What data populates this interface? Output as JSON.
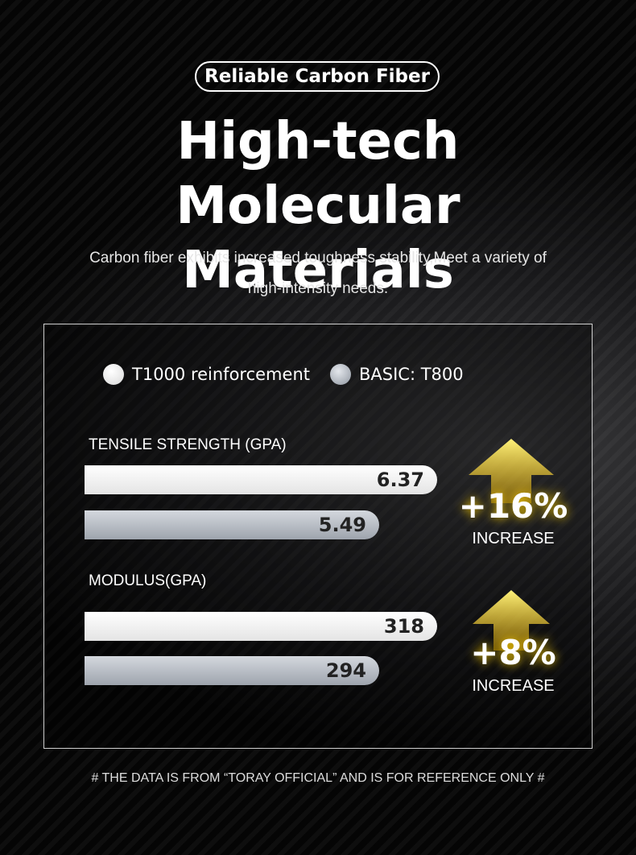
{
  "badge": "Reliable Carbon Fiber",
  "title": "High-tech Molecular Materials",
  "description": "Carbon fiber exhibits increased toughness stability,Meet a variety of high-intensity needs.",
  "legend": [
    "T1000 reinforcement",
    "BASIC: T800"
  ],
  "metrics": [
    {
      "label": "TENSILE STRENGTH (GPA)",
      "values": [
        6.37,
        5.49
      ],
      "change": "+16%",
      "change_label": "INCREASE"
    },
    {
      "label": "MODULUS(GPA)",
      "values": [
        318,
        294
      ],
      "change": "+8%",
      "change_label": "INCREASE"
    }
  ],
  "footnote": "# THE DATA IS FROM “TORAY OFFICIAL” AND IS FOR REFERENCE ONLY #"
}
